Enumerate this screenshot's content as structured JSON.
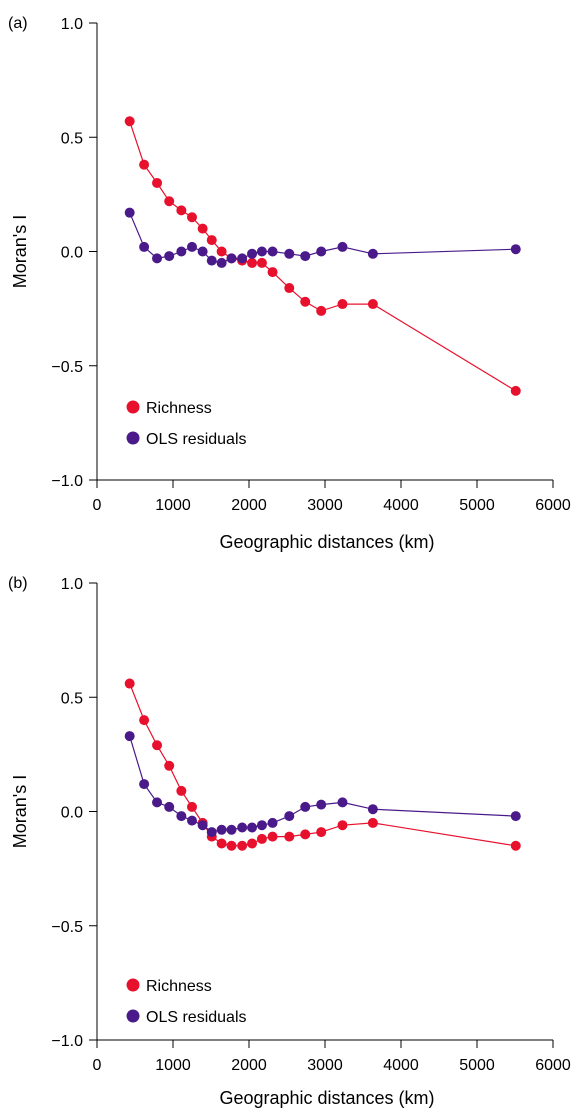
{
  "chart_data": [
    {
      "type": "line",
      "panel_label": "(a)",
      "xlabel": "Geographic distances (km)",
      "ylabel": "Moran's I",
      "xlim": [
        0,
        6000
      ],
      "ylim": [
        -1.0,
        1.0
      ],
      "x_ticks": [
        0,
        1000,
        2000,
        3000,
        4000,
        5000,
        6000
      ],
      "x_tick_labels": [
        "0",
        "1000",
        "2000",
        "3000",
        "4000",
        "5000",
        "6000"
      ],
      "y_ticks": [
        -1.0,
        -0.5,
        0.0,
        0.5,
        1.0
      ],
      "y_tick_labels": [
        "−1.0",
        "−0.5",
        "0.0",
        "0.5",
        "1.0"
      ],
      "legend_position": "bottom-left",
      "grid": false,
      "series": [
        {
          "name": "Richness",
          "color": "#e8112d",
          "x": [
            430,
            620,
            790,
            950,
            1110,
            1250,
            1390,
            1510,
            1640,
            1770,
            1910,
            2040,
            2170,
            2310,
            2530,
            2740,
            2950,
            3230,
            3630,
            5510
          ],
          "values": [
            0.57,
            0.38,
            0.3,
            0.22,
            0.18,
            0.15,
            0.1,
            0.05,
            0.0,
            -0.03,
            -0.04,
            -0.05,
            -0.05,
            -0.09,
            -0.16,
            -0.22,
            -0.26,
            -0.23,
            -0.23,
            -0.61
          ]
        },
        {
          "name": "OLS residuals",
          "color": "#4b1a8a",
          "x": [
            430,
            620,
            790,
            950,
            1110,
            1250,
            1390,
            1510,
            1640,
            1770,
            1910,
            2040,
            2170,
            2310,
            2530,
            2740,
            2950,
            3230,
            3630,
            5510
          ],
          "values": [
            0.17,
            0.02,
            -0.03,
            -0.02,
            0.0,
            0.02,
            0.0,
            -0.04,
            -0.05,
            -0.03,
            -0.03,
            -0.01,
            0.0,
            0.0,
            -0.01,
            -0.02,
            0.0,
            0.02,
            -0.01,
            0.01
          ]
        }
      ]
    },
    {
      "type": "line",
      "panel_label": "(b)",
      "xlabel": "Geographic distances (km)",
      "ylabel": "Moran's I",
      "xlim": [
        0,
        6000
      ],
      "ylim": [
        -1.0,
        1.0
      ],
      "x_ticks": [
        0,
        1000,
        2000,
        3000,
        4000,
        5000,
        6000
      ],
      "x_tick_labels": [
        "0",
        "1000",
        "2000",
        "3000",
        "4000",
        "5000",
        "6000"
      ],
      "y_ticks": [
        -1.0,
        -0.5,
        0.0,
        0.5,
        1.0
      ],
      "y_tick_labels": [
        "−1.0",
        "−0.5",
        "0.0",
        "0.5",
        "1.0"
      ],
      "legend_position": "bottom-left",
      "grid": false,
      "series": [
        {
          "name": "Richness",
          "color": "#e8112d",
          "x": [
            430,
            620,
            790,
            950,
            1110,
            1250,
            1390,
            1510,
            1640,
            1770,
            1910,
            2040,
            2170,
            2310,
            2530,
            2740,
            2950,
            3230,
            3630,
            5510
          ],
          "values": [
            0.56,
            0.4,
            0.29,
            0.2,
            0.09,
            0.02,
            -0.05,
            -0.11,
            -0.14,
            -0.15,
            -0.15,
            -0.14,
            -0.12,
            -0.11,
            -0.11,
            -0.1,
            -0.09,
            -0.06,
            -0.05,
            -0.15
          ]
        },
        {
          "name": "OLS residuals",
          "color": "#4b1a8a",
          "x": [
            430,
            620,
            790,
            950,
            1110,
            1250,
            1390,
            1510,
            1640,
            1770,
            1910,
            2040,
            2170,
            2310,
            2530,
            2740,
            2950,
            3230,
            3630,
            5510
          ],
          "values": [
            0.33,
            0.12,
            0.04,
            0.02,
            -0.02,
            -0.04,
            -0.06,
            -0.09,
            -0.08,
            -0.08,
            -0.07,
            -0.07,
            -0.06,
            -0.05,
            -0.02,
            0.02,
            0.03,
            0.04,
            0.01,
            -0.02
          ]
        }
      ]
    }
  ]
}
